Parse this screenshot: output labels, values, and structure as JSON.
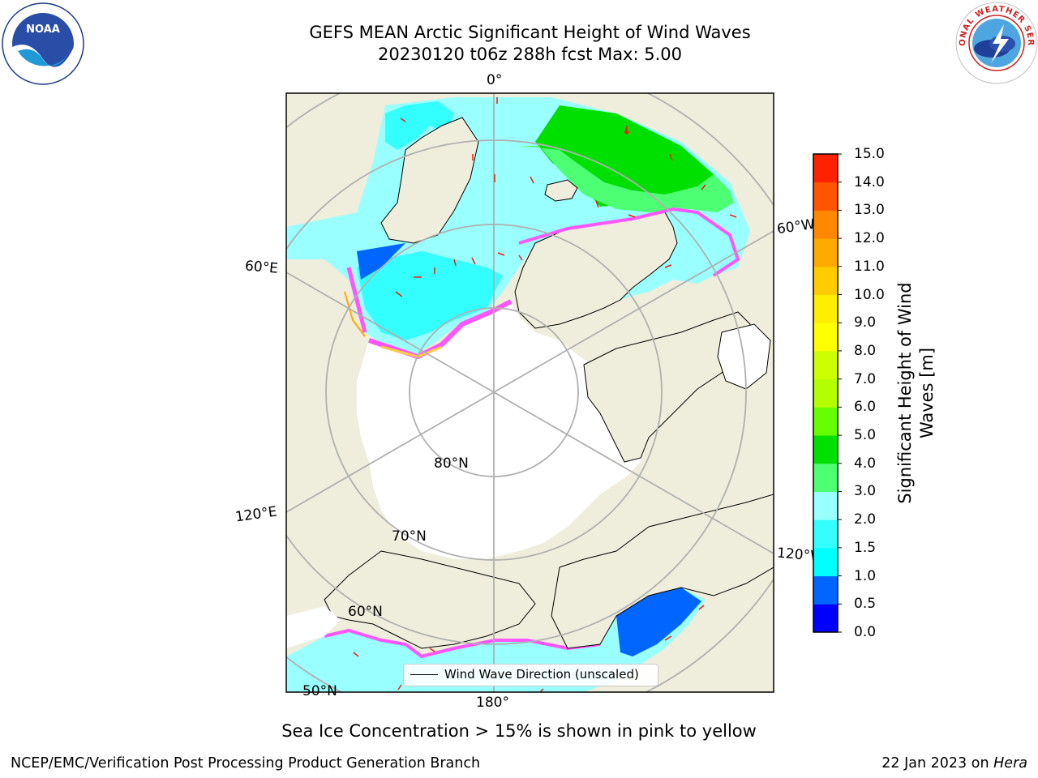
{
  "title_line1": "GEFS MEAN Arctic Significant Height of Wind Waves",
  "title_line2": "20230120 t06z 288h fcst   Max: 5.00",
  "logos": {
    "left": {
      "icon": "noaa-logo",
      "text": "NOAA"
    },
    "right": {
      "icon": "nws-logo",
      "text": "NATIONAL WEATHER SERVICE"
    }
  },
  "map": {
    "projection": "north-polar-stereographic",
    "longitude_labels": {
      "lon_0": "0°",
      "lon_60e": "60°E",
      "lon_60w": "60°W",
      "lon_120e": "120°E",
      "lon_120w": "120°W",
      "lon_180": "180°"
    },
    "latitude_labels": {
      "lat_80": "80°N",
      "lat_70": "70°N",
      "lat_60": "60°N",
      "lat_50": "50°N"
    },
    "colors": {
      "land": "#efeddb",
      "ice": "#ffffff",
      "coast": "#000000",
      "grid": "#b0b0b0",
      "arrows": "#e8200c"
    },
    "legend_label": "Wind Wave Direction (unscaled)"
  },
  "colorbar": {
    "label": "Significant Height of Wind Waves [m]",
    "label_line1": "Significant Height of Wind",
    "label_line2": "Waves [m]",
    "ticks": [
      "0.0",
      "0.5",
      "1.0",
      "1.5",
      "2.0",
      "3.0",
      "4.0",
      "5.0",
      "6.0",
      "7.0",
      "8.0",
      "9.0",
      "10.0",
      "11.0",
      "12.0",
      "13.0",
      "14.0",
      "15.0"
    ],
    "colors": [
      "#0000ff",
      "#0066ff",
      "#00ffff",
      "#33ffff",
      "#99ffff",
      "#4dff73",
      "#00e000",
      "#66ff00",
      "#b3ff00",
      "#ccff00",
      "#ffff00",
      "#ffee00",
      "#ffcc00",
      "#ffaa00",
      "#ff8800",
      "#ff5500",
      "#ff2200"
    ]
  },
  "caption": "Sea Ice Concentration > 15% is shown in pink to yellow",
  "footer_left": "NCEP/EMC/Verification Post Processing Product Generation Branch",
  "footer_right_date": "22 Jan 2023 on",
  "footer_right_host": "Hera"
}
